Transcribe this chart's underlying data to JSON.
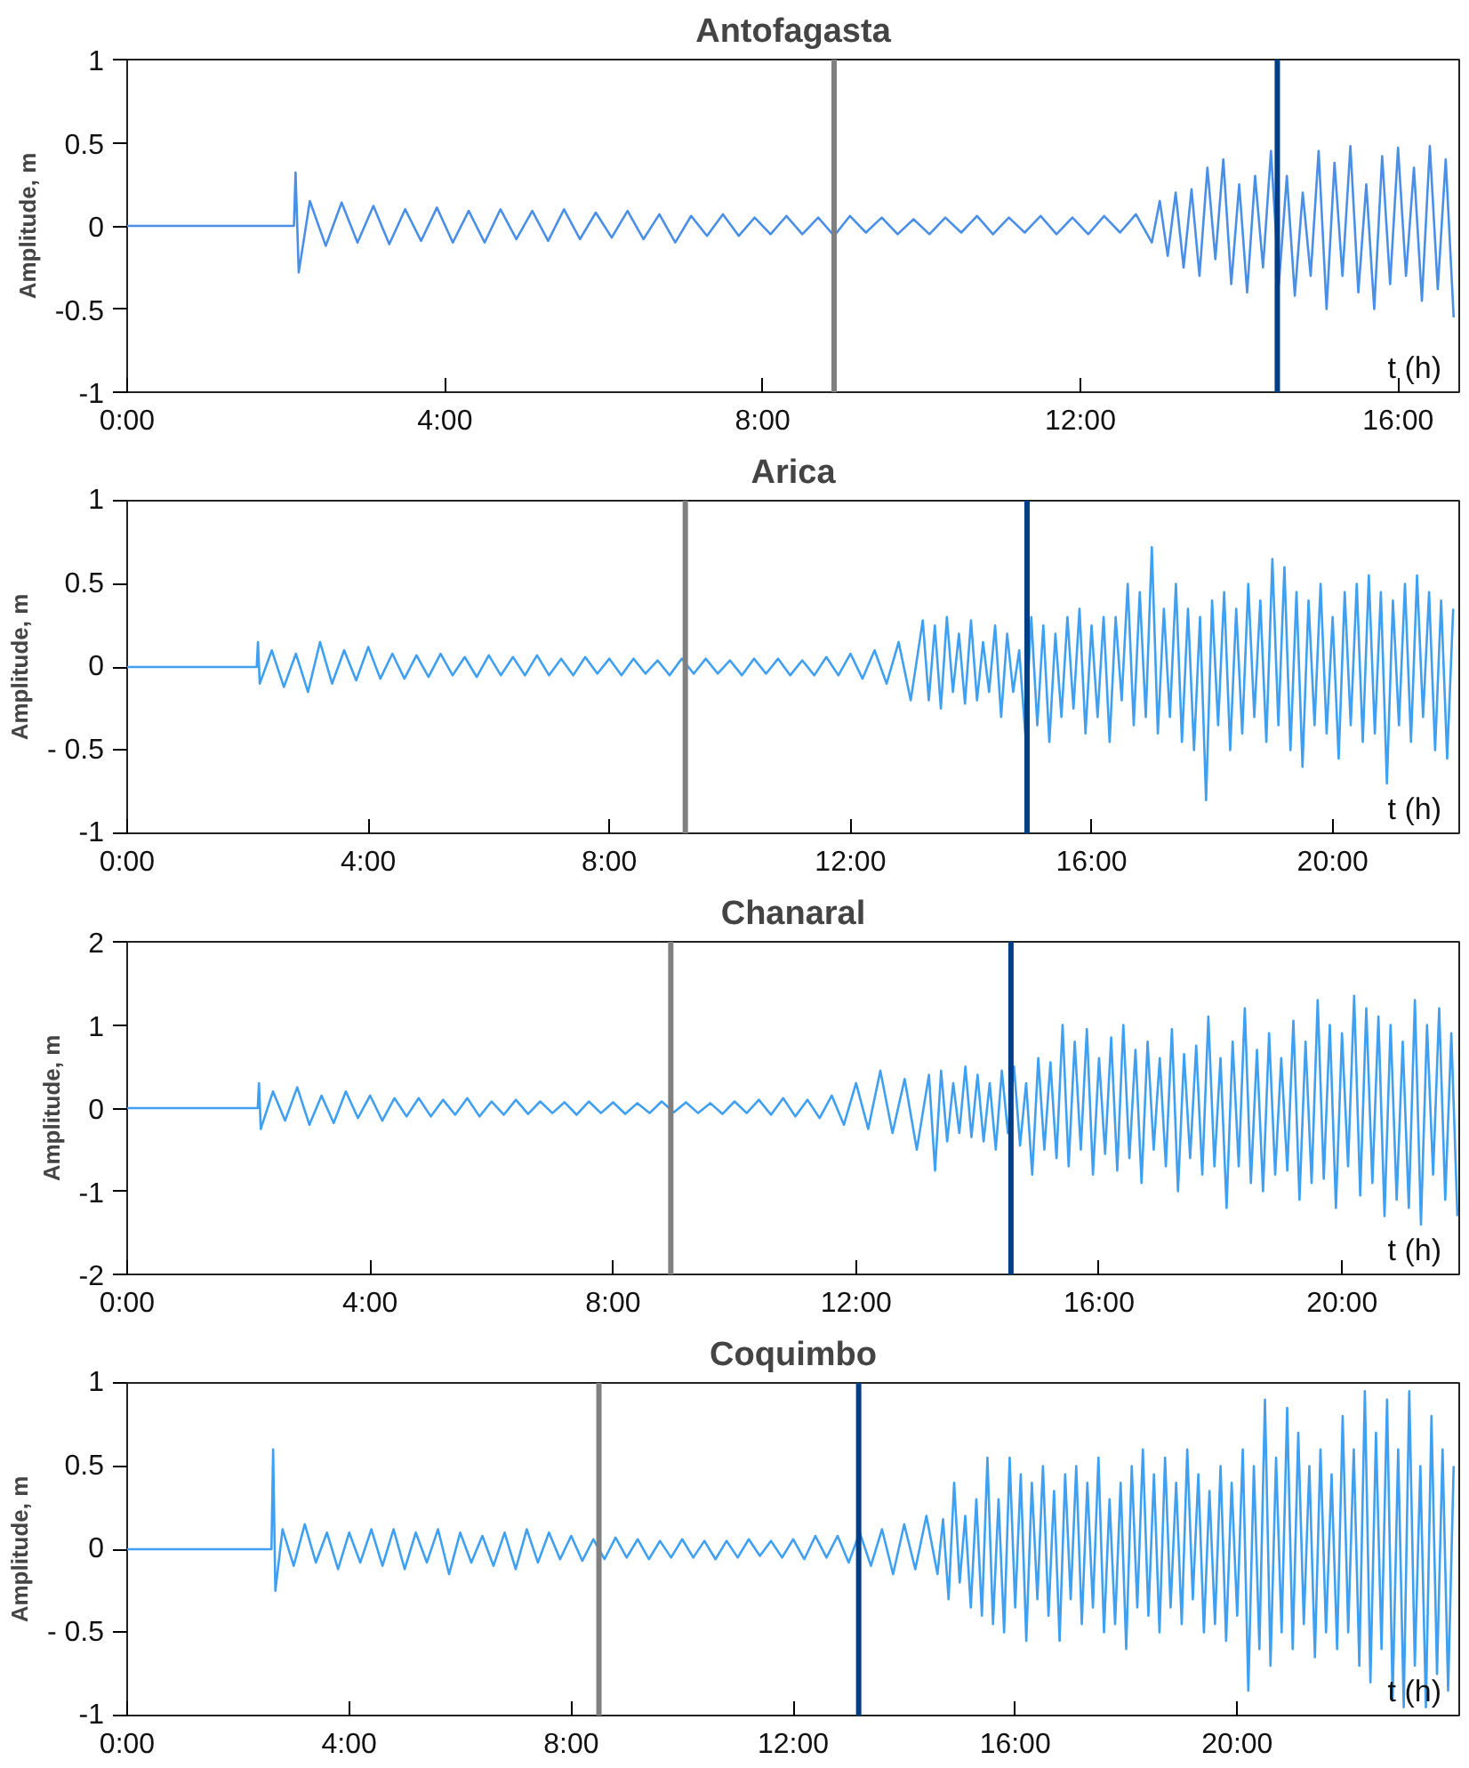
{
  "chart_data": [
    {
      "type": "line",
      "title": "Antofagasta",
      "xlabel": "t (h)",
      "ylabel": "Amplitude, m",
      "xlim": [
        0,
        16.77
      ],
      "ylim": [
        -1,
        1
      ],
      "xticks": [
        {
          "value": 0,
          "label": "0:00"
        },
        {
          "value": 4,
          "label": "4:00"
        },
        {
          "value": 8,
          "label": "8:00"
        },
        {
          "value": 12,
          "label": "12:00"
        },
        {
          "value": 16,
          "label": "16:00"
        }
      ],
      "yticks": [
        -1,
        -0.5,
        0,
        0.5,
        1
      ],
      "grid": false,
      "ref_lines": [
        {
          "axis": "x",
          "value": 8.9,
          "color": "#808080"
        },
        {
          "axis": "x",
          "value": 14.48,
          "color": "#003f87"
        }
      ],
      "series": [
        {
          "color": "#4a8fe7",
          "x": [
            0,
            2.1,
            2.12,
            2.16,
            2.3,
            2.5,
            2.7,
            2.9,
            3.1,
            3.3,
            3.5,
            3.7,
            3.9,
            4.1,
            4.3,
            4.5,
            4.7,
            4.9,
            5.1,
            5.3,
            5.5,
            5.7,
            5.9,
            6.1,
            6.3,
            6.5,
            6.7,
            6.9,
            7.1,
            7.3,
            7.5,
            7.7,
            7.9,
            8.1,
            8.3,
            8.5,
            8.7,
            8.9,
            9.1,
            9.3,
            9.5,
            9.7,
            9.9,
            10.1,
            10.3,
            10.5,
            10.7,
            10.9,
            11.1,
            11.3,
            11.5,
            11.7,
            11.9,
            12.1,
            12.3,
            12.5,
            12.7,
            12.9,
            13.0,
            13.1,
            13.2,
            13.3,
            13.4,
            13.5,
            13.6,
            13.7,
            13.8,
            13.9,
            14.0,
            14.1,
            14.2,
            14.3,
            14.4,
            14.5,
            14.6,
            14.7,
            14.8,
            14.9,
            15.0,
            15.1,
            15.2,
            15.3,
            15.4,
            15.5,
            15.6,
            15.7,
            15.8,
            15.9,
            16.0,
            16.1,
            16.2,
            16.3,
            16.4,
            16.5,
            16.6,
            16.7
          ],
          "values": [
            0,
            0,
            0.32,
            -0.28,
            0.15,
            -0.12,
            0.14,
            -0.1,
            0.12,
            -0.11,
            0.1,
            -0.09,
            0.11,
            -0.1,
            0.09,
            -0.1,
            0.1,
            -0.08,
            0.09,
            -0.09,
            0.1,
            -0.08,
            0.08,
            -0.07,
            0.09,
            -0.08,
            0.07,
            -0.1,
            0.06,
            -0.06,
            0.07,
            -0.06,
            0.05,
            -0.05,
            0.06,
            -0.05,
            0.05,
            -0.06,
            0.06,
            -0.04,
            0.05,
            -0.05,
            0.04,
            -0.05,
            0.05,
            -0.04,
            0.06,
            -0.05,
            0.05,
            -0.04,
            0.06,
            -0.05,
            0.05,
            -0.05,
            0.06,
            -0.04,
            0.07,
            -0.1,
            0.15,
            -0.18,
            0.2,
            -0.25,
            0.22,
            -0.3,
            0.35,
            -0.2,
            0.4,
            -0.35,
            0.25,
            -0.4,
            0.3,
            -0.25,
            0.45,
            -0.35,
            0.3,
            -0.42,
            0.2,
            -0.3,
            0.45,
            -0.5,
            0.38,
            -0.3,
            0.48,
            -0.4,
            0.25,
            -0.5,
            0.42,
            -0.35,
            0.47,
            -0.3,
            0.35,
            -0.45,
            0.48,
            -0.38,
            0.4,
            -0.55
          ]
        }
      ]
    },
    {
      "type": "line",
      "title": "Arica",
      "xlabel": "t (h)",
      "ylabel": "Amplitude, m",
      "xlim": [
        0,
        22.1
      ],
      "ylim": [
        -1,
        1
      ],
      "xticks": [
        {
          "value": 0,
          "label": "0:00"
        },
        {
          "value": 4,
          "label": "4:00"
        },
        {
          "value": 8,
          "label": "8:00"
        },
        {
          "value": 12,
          "label": "12:00"
        },
        {
          "value": 16,
          "label": "16:00"
        },
        {
          "value": 20,
          "label": "20:00"
        }
      ],
      "yticks": [
        -1,
        {
          "value": -0.5,
          "label": "- 0.5"
        },
        0,
        0.5,
        1
      ],
      "grid": false,
      "ref_lines": [
        {
          "axis": "x",
          "value": 9.26,
          "color": "#808080"
        },
        {
          "axis": "x",
          "value": 14.93,
          "color": "#003f87"
        }
      ],
      "series": [
        {
          "color": "#3f9ff0",
          "x": [
            0,
            2.15,
            2.17,
            2.2,
            2.4,
            2.6,
            2.8,
            3.0,
            3.2,
            3.4,
            3.6,
            3.8,
            4.0,
            4.2,
            4.4,
            4.6,
            4.8,
            5.0,
            5.2,
            5.4,
            5.6,
            5.8,
            6.0,
            6.2,
            6.4,
            6.6,
            6.8,
            7.0,
            7.2,
            7.4,
            7.6,
            7.8,
            8.0,
            8.2,
            8.4,
            8.6,
            8.8,
            9.0,
            9.2,
            9.4,
            9.6,
            9.8,
            10.0,
            10.2,
            10.4,
            10.6,
            10.8,
            11.0,
            11.2,
            11.4,
            11.6,
            11.8,
            12.0,
            12.2,
            12.4,
            12.6,
            12.8,
            13.0,
            13.2,
            13.3,
            13.4,
            13.5,
            13.6,
            13.7,
            13.8,
            13.9,
            14.0,
            14.1,
            14.2,
            14.3,
            14.4,
            14.5,
            14.6,
            14.7,
            14.8,
            14.9,
            15.0,
            15.1,
            15.2,
            15.3,
            15.4,
            15.5,
            15.6,
            15.7,
            15.8,
            15.9,
            16.0,
            16.1,
            16.2,
            16.3,
            16.4,
            16.5,
            16.6,
            16.7,
            16.8,
            16.9,
            17.0,
            17.1,
            17.2,
            17.3,
            17.4,
            17.5,
            17.6,
            17.7,
            17.8,
            17.9,
            18.0,
            18.1,
            18.2,
            18.3,
            18.4,
            18.5,
            18.6,
            18.7,
            18.8,
            18.9,
            19.0,
            19.1,
            19.2,
            19.3,
            19.4,
            19.5,
            19.6,
            19.7,
            19.8,
            19.9,
            20.0,
            20.1,
            20.2,
            20.3,
            20.4,
            20.5,
            20.6,
            20.7,
            20.8,
            20.9,
            21.0,
            21.1,
            21.2,
            21.3,
            21.4,
            21.5,
            21.6,
            21.7,
            21.8,
            21.9,
            22.0
          ],
          "values": [
            0,
            0,
            0.15,
            -0.1,
            0.1,
            -0.12,
            0.08,
            -0.15,
            0.15,
            -0.1,
            0.1,
            -0.08,
            0.12,
            -0.07,
            0.08,
            -0.07,
            0.07,
            -0.06,
            0.08,
            -0.05,
            0.06,
            -0.06,
            0.07,
            -0.05,
            0.06,
            -0.05,
            0.07,
            -0.05,
            0.05,
            -0.05,
            0.06,
            -0.04,
            0.05,
            -0.05,
            0.05,
            -0.04,
            0.04,
            -0.05,
            0.05,
            -0.04,
            0.05,
            -0.04,
            0.04,
            -0.05,
            0.05,
            -0.04,
            0.05,
            -0.05,
            0.04,
            -0.05,
            0.06,
            -0.05,
            0.08,
            -0.07,
            0.1,
            -0.1,
            0.15,
            -0.2,
            0.28,
            -0.2,
            0.25,
            -0.25,
            0.3,
            -0.15,
            0.2,
            -0.22,
            0.28,
            -0.2,
            0.15,
            -0.15,
            0.25,
            -0.3,
            0.2,
            -0.15,
            0.1,
            -0.4,
            0.3,
            -0.35,
            0.25,
            -0.45,
            0.2,
            -0.3,
            0.3,
            -0.25,
            0.35,
            -0.4,
            0.25,
            -0.3,
            0.3,
            -0.45,
            0.3,
            -0.2,
            0.5,
            -0.35,
            0.45,
            -0.3,
            0.72,
            -0.4,
            0.35,
            -0.3,
            0.5,
            -0.45,
            0.35,
            -0.5,
            0.3,
            -0.8,
            0.4,
            -0.35,
            0.45,
            -0.5,
            0.35,
            -0.4,
            0.5,
            -0.3,
            0.4,
            -0.45,
            0.65,
            -0.35,
            0.6,
            -0.5,
            0.45,
            -0.6,
            0.4,
            -0.35,
            0.5,
            -0.4,
            0.3,
            -0.55,
            0.45,
            -0.35,
            0.5,
            -0.45,
            0.55,
            -0.4,
            0.45,
            -0.7,
            0.4,
            -0.35,
            0.5,
            -0.45,
            0.55,
            -0.3,
            0.45,
            -0.5,
            0.4,
            -0.55,
            0.35
          ]
        }
      ]
    },
    {
      "type": "line",
      "title": "Chanaral",
      "xlabel": "t (h)",
      "ylabel": "Amplitude, m",
      "xlim": [
        0,
        21.93
      ],
      "ylim": [
        -2,
        2
      ],
      "xticks": [
        {
          "value": 0,
          "label": "0:00"
        },
        {
          "value": 4,
          "label": "4:00"
        },
        {
          "value": 8,
          "label": "8:00"
        },
        {
          "value": 12,
          "label": "12:00"
        },
        {
          "value": 16,
          "label": "16:00"
        },
        {
          "value": 20,
          "label": "20:00"
        }
      ],
      "yticks": [
        -2,
        -1,
        0,
        1,
        2
      ],
      "grid": false,
      "ref_lines": [
        {
          "axis": "x",
          "value": 8.95,
          "color": "#808080"
        },
        {
          "axis": "x",
          "value": 14.55,
          "color": "#003f87"
        }
      ],
      "series": [
        {
          "color": "#3f9ff0",
          "x": [
            0,
            2.15,
            2.17,
            2.2,
            2.4,
            2.6,
            2.8,
            3.0,
            3.2,
            3.4,
            3.6,
            3.8,
            4.0,
            4.2,
            4.4,
            4.6,
            4.8,
            5.0,
            5.2,
            5.4,
            5.6,
            5.8,
            6.0,
            6.2,
            6.4,
            6.6,
            6.8,
            7.0,
            7.2,
            7.4,
            7.6,
            7.8,
            8.0,
            8.2,
            8.4,
            8.6,
            8.8,
            9.0,
            9.2,
            9.4,
            9.6,
            9.8,
            10.0,
            10.2,
            10.4,
            10.6,
            10.8,
            11.0,
            11.2,
            11.4,
            11.6,
            11.8,
            12.0,
            12.2,
            12.4,
            12.6,
            12.8,
            13.0,
            13.2,
            13.3,
            13.4,
            13.5,
            13.6,
            13.7,
            13.8,
            13.9,
            14.0,
            14.1,
            14.2,
            14.3,
            14.4,
            14.5,
            14.6,
            14.7,
            14.8,
            14.9,
            15.0,
            15.1,
            15.2,
            15.3,
            15.4,
            15.5,
            15.6,
            15.7,
            15.8,
            15.9,
            16.0,
            16.1,
            16.2,
            16.3,
            16.4,
            16.5,
            16.6,
            16.7,
            16.8,
            16.9,
            17.0,
            17.1,
            17.2,
            17.3,
            17.4,
            17.5,
            17.6,
            17.7,
            17.8,
            17.9,
            18.0,
            18.1,
            18.2,
            18.3,
            18.4,
            18.5,
            18.6,
            18.7,
            18.8,
            18.9,
            19.0,
            19.1,
            19.2,
            19.3,
            19.4,
            19.5,
            19.6,
            19.7,
            19.8,
            19.9,
            20.0,
            20.1,
            20.2,
            20.3,
            20.4,
            20.5,
            20.6,
            20.7,
            20.8,
            20.9,
            21.0,
            21.1,
            21.2,
            21.3,
            21.4,
            21.5,
            21.6,
            21.7,
            21.8,
            21.9
          ],
          "values": [
            0,
            0,
            0.3,
            -0.25,
            0.2,
            -0.15,
            0.25,
            -0.2,
            0.15,
            -0.18,
            0.2,
            -0.12,
            0.15,
            -0.15,
            0.12,
            -0.1,
            0.12,
            -0.1,
            0.1,
            -0.08,
            0.12,
            -0.1,
            0.08,
            -0.08,
            0.1,
            -0.07,
            0.08,
            -0.06,
            0.07,
            -0.08,
            0.08,
            -0.06,
            0.07,
            -0.07,
            0.06,
            -0.06,
            0.08,
            -0.05,
            0.07,
            -0.06,
            0.06,
            -0.07,
            0.08,
            -0.06,
            0.1,
            -0.08,
            0.12,
            -0.1,
            0.1,
            -0.12,
            0.15,
            -0.2,
            0.3,
            -0.25,
            0.45,
            -0.3,
            0.35,
            -0.5,
            0.4,
            -0.75,
            0.45,
            -0.4,
            0.3,
            -0.3,
            0.5,
            -0.35,
            0.4,
            -0.4,
            0.3,
            -0.5,
            0.45,
            -0.3,
            0.5,
            -0.45,
            0.3,
            -0.8,
            0.6,
            -0.5,
            0.55,
            -0.6,
            1.0,
            -0.7,
            0.8,
            -0.5,
            0.95,
            -0.8,
            0.6,
            -0.55,
            0.85,
            -0.75,
            1.0,
            -0.6,
            0.7,
            -0.9,
            0.8,
            -0.5,
            0.6,
            -0.7,
            0.95,
            -1.0,
            0.65,
            -0.6,
            0.75,
            -0.8,
            1.1,
            -0.7,
            0.6,
            -1.2,
            0.8,
            -0.7,
            1.2,
            -0.9,
            0.7,
            -1.0,
            0.9,
            -0.8,
            0.6,
            -0.75,
            1.05,
            -1.1,
            0.8,
            -0.9,
            1.3,
            -0.85,
            1.0,
            -1.2,
            0.9,
            -0.7,
            1.35,
            -1.05,
            1.2,
            -0.9,
            1.1,
            -1.3,
            1.0,
            -1.1,
            0.8,
            -1.2,
            1.3,
            -1.4,
            1.0,
            -0.8,
            1.2,
            -1.1,
            0.9,
            -1.3
          ]
        }
      ]
    },
    {
      "type": "line",
      "title": "Coquimbo",
      "xlabel": "t (h)",
      "ylabel": "Amplitude, m",
      "xlim": [
        0,
        24
      ],
      "ylim": [
        -1,
        1
      ],
      "xticks": [
        {
          "value": 0,
          "label": "0:00"
        },
        {
          "value": 4,
          "label": "4:00"
        },
        {
          "value": 8,
          "label": "8:00"
        },
        {
          "value": 12,
          "label": "12:00"
        },
        {
          "value": 16,
          "label": "16:00"
        },
        {
          "value": 20,
          "label": "20:00"
        }
      ],
      "yticks": [
        -1,
        {
          "value": -0.5,
          "label": "- 0.5"
        },
        0,
        0.5,
        1
      ],
      "grid": false,
      "ref_lines": [
        {
          "axis": "x",
          "value": 8.5,
          "color": "#808080"
        },
        {
          "axis": "x",
          "value": 13.18,
          "color": "#003f87"
        }
      ],
      "series": [
        {
          "color": "#3f9ff0",
          "x": [
            0,
            2.6,
            2.63,
            2.67,
            2.8,
            3.0,
            3.2,
            3.4,
            3.6,
            3.8,
            4.0,
            4.2,
            4.4,
            4.6,
            4.8,
            5.0,
            5.2,
            5.4,
            5.6,
            5.8,
            6.0,
            6.2,
            6.4,
            6.6,
            6.8,
            7.0,
            7.2,
            7.4,
            7.6,
            7.8,
            8.0,
            8.2,
            8.4,
            8.6,
            8.8,
            9.0,
            9.2,
            9.4,
            9.6,
            9.8,
            10.0,
            10.2,
            10.4,
            10.6,
            10.8,
            11.0,
            11.2,
            11.4,
            11.6,
            11.8,
            12.0,
            12.2,
            12.4,
            12.6,
            12.8,
            13.0,
            13.2,
            13.4,
            13.6,
            13.8,
            14.0,
            14.2,
            14.4,
            14.6,
            14.7,
            14.8,
            14.9,
            15.0,
            15.1,
            15.2,
            15.3,
            15.4,
            15.5,
            15.6,
            15.7,
            15.8,
            15.9,
            16.0,
            16.1,
            16.2,
            16.3,
            16.4,
            16.5,
            16.6,
            16.7,
            16.8,
            16.9,
            17.0,
            17.1,
            17.2,
            17.3,
            17.4,
            17.5,
            17.6,
            17.7,
            17.8,
            17.9,
            18.0,
            18.1,
            18.2,
            18.3,
            18.4,
            18.5,
            18.6,
            18.7,
            18.8,
            18.9,
            19.0,
            19.1,
            19.2,
            19.3,
            19.4,
            19.5,
            19.6,
            19.7,
            19.8,
            19.9,
            20.0,
            20.1,
            20.2,
            20.3,
            20.4,
            20.5,
            20.6,
            20.7,
            20.8,
            20.9,
            21.0,
            21.1,
            21.2,
            21.3,
            21.4,
            21.5,
            21.6,
            21.7,
            21.8,
            21.9,
            22.0,
            22.1,
            22.2,
            22.3,
            22.4,
            22.5,
            22.6,
            22.7,
            22.8,
            22.9,
            23.0,
            23.1,
            23.2,
            23.3,
            23.4,
            23.5,
            23.6,
            23.7,
            23.8,
            23.9
          ],
          "values": [
            0,
            0,
            0.6,
            -0.25,
            0.12,
            -0.1,
            0.15,
            -0.08,
            0.1,
            -0.12,
            0.1,
            -0.08,
            0.12,
            -0.1,
            0.12,
            -0.12,
            0.1,
            -0.08,
            0.12,
            -0.15,
            0.1,
            -0.08,
            0.08,
            -0.1,
            0.1,
            -0.12,
            0.12,
            -0.08,
            0.1,
            -0.06,
            0.08,
            -0.07,
            0.06,
            -0.06,
            0.07,
            -0.05,
            0.06,
            -0.06,
            0.05,
            -0.05,
            0.06,
            -0.05,
            0.05,
            -0.06,
            0.05,
            -0.05,
            0.06,
            -0.04,
            0.05,
            -0.05,
            0.06,
            -0.06,
            0.08,
            -0.05,
            0.08,
            -0.08,
            0.1,
            -0.1,
            0.12,
            -0.15,
            0.15,
            -0.12,
            0.2,
            -0.15,
            0.18,
            -0.3,
            0.4,
            -0.2,
            0.2,
            -0.35,
            0.3,
            -0.4,
            0.55,
            -0.45,
            0.3,
            -0.5,
            0.55,
            -0.35,
            0.45,
            -0.55,
            0.4,
            -0.3,
            0.5,
            -0.4,
            0.35,
            -0.55,
            0.45,
            -0.3,
            0.5,
            -0.45,
            0.4,
            -0.35,
            0.55,
            -0.5,
            0.3,
            -0.45,
            0.4,
            -0.6,
            0.5,
            -0.35,
            0.6,
            -0.4,
            0.45,
            -0.5,
            0.55,
            -0.35,
            0.4,
            -0.45,
            0.6,
            -0.3,
            0.45,
            -0.5,
            0.35,
            -0.45,
            0.5,
            -0.55,
            0.4,
            -0.4,
            0.6,
            -0.85,
            0.5,
            -0.6,
            0.9,
            -0.7,
            0.55,
            -0.5,
            0.85,
            -0.6,
            0.7,
            -0.45,
            0.5,
            -0.65,
            0.6,
            -0.5,
            0.45,
            -0.6,
            0.8,
            -0.5,
            0.6,
            -0.7,
            0.95,
            -0.8,
            0.7,
            -0.6,
            0.9,
            -0.9,
            0.6,
            -0.95,
            0.95,
            -0.7,
            0.5,
            -0.95,
            0.8,
            -0.75,
            0.6,
            -0.85,
            0.5
          ]
        }
      ]
    }
  ]
}
